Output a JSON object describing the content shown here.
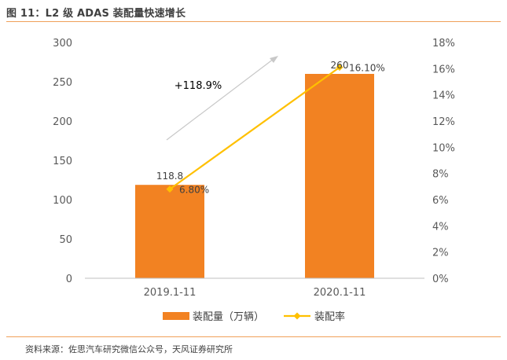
{
  "header": {
    "title": "图 11：L2 级 ADAS 装配量快速增长"
  },
  "footer": {
    "source": "资料来源：佐思汽车研究微信公众号，天风证券研究所"
  },
  "colors": {
    "bar": "#f28222",
    "line": "#ffc000",
    "accent_rule": "#f0a05a",
    "arrow": "#c8c8c8"
  },
  "chart_data": {
    "type": "bar",
    "categories": [
      "2019.1-11",
      "2020.1-11"
    ],
    "series": [
      {
        "name": "装配量（万辆）",
        "type": "bar",
        "axis": "left",
        "values": [
          118.8,
          260
        ],
        "labels": [
          "118.8",
          "260"
        ]
      },
      {
        "name": "装配率",
        "type": "line",
        "axis": "right",
        "values": [
          6.8,
          16.1
        ],
        "labels": [
          "6.80%",
          "16.10%"
        ]
      }
    ],
    "y_left": {
      "min": 0,
      "max": 300,
      "ticks": [
        "0",
        "50",
        "100",
        "150",
        "200",
        "250",
        "300"
      ]
    },
    "y_right": {
      "min": 0,
      "max": 18,
      "ticks": [
        "0%",
        "2%",
        "4%",
        "6%",
        "8%",
        "10%",
        "12%",
        "14%",
        "16%",
        "18%"
      ]
    },
    "annotation": "+118.9%",
    "grid": false,
    "legend_position": "bottom"
  }
}
